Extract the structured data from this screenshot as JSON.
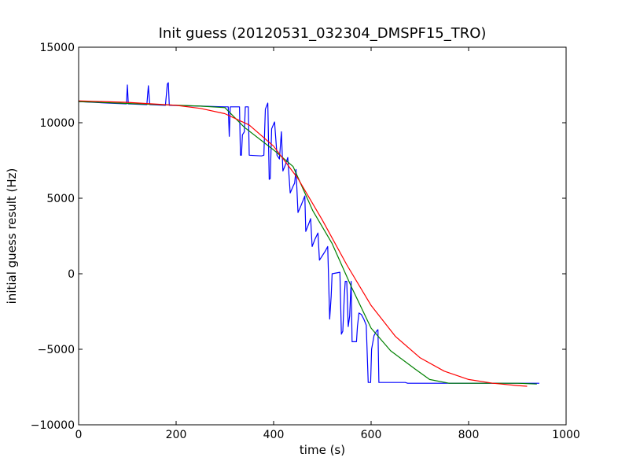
{
  "chart_data": {
    "type": "line",
    "title": "Init guess (20120531_032304_DMSPF15_TRO)",
    "xlabel": "time (s)",
    "ylabel": "initial guess result (Hz)",
    "xlim": [
      0,
      1000
    ],
    "ylim": [
      -10000,
      15000
    ],
    "xticks": [
      0,
      200,
      400,
      600,
      800,
      1000
    ],
    "yticks": [
      -10000,
      -5000,
      0,
      5000,
      10000,
      15000
    ],
    "grid": false,
    "colors": {
      "raw": "#0000ff",
      "piecewise": "#008000",
      "fit": "#ff0000"
    },
    "series": [
      {
        "key": "raw",
        "points": [
          [
            0,
            11400
          ],
          [
            60,
            11300
          ],
          [
            98,
            11250
          ],
          [
            100,
            12500
          ],
          [
            102,
            11250
          ],
          [
            140,
            11200
          ],
          [
            143,
            12450
          ],
          [
            146,
            11200
          ],
          [
            178,
            11150
          ],
          [
            182,
            12550
          ],
          [
            184,
            12650
          ],
          [
            186,
            11150
          ],
          [
            250,
            11100
          ],
          [
            300,
            11050
          ],
          [
            307,
            11050
          ],
          [
            309,
            9100
          ],
          [
            311,
            11050
          ],
          [
            330,
            11050
          ],
          [
            332,
            7850
          ],
          [
            334,
            7850
          ],
          [
            336,
            9200
          ],
          [
            340,
            9400
          ],
          [
            342,
            11050
          ],
          [
            348,
            11050
          ],
          [
            350,
            7850
          ],
          [
            375,
            7800
          ],
          [
            380,
            7850
          ],
          [
            383,
            10900
          ],
          [
            388,
            11300
          ],
          [
            391,
            6250
          ],
          [
            393,
            6300
          ],
          [
            396,
            9600
          ],
          [
            402,
            10050
          ],
          [
            407,
            7850
          ],
          [
            412,
            7600
          ],
          [
            416,
            9400
          ],
          [
            419,
            6800
          ],
          [
            424,
            7200
          ],
          [
            429,
            7700
          ],
          [
            434,
            5350
          ],
          [
            440,
            5800
          ],
          [
            443,
            6000
          ],
          [
            446,
            6900
          ],
          [
            450,
            4050
          ],
          [
            456,
            4500
          ],
          [
            461,
            4900
          ],
          [
            464,
            5150
          ],
          [
            466,
            2800
          ],
          [
            472,
            3300
          ],
          [
            476,
            3650
          ],
          [
            479,
            1800
          ],
          [
            485,
            2300
          ],
          [
            491,
            2700
          ],
          [
            494,
            900
          ],
          [
            500,
            1200
          ],
          [
            506,
            1500
          ],
          [
            511,
            1800
          ],
          [
            515,
            -3000
          ],
          [
            518,
            -1500
          ],
          [
            520,
            0
          ],
          [
            536,
            100
          ],
          [
            539,
            -4000
          ],
          [
            542,
            -3800
          ],
          [
            545,
            -1500
          ],
          [
            547,
            -500
          ],
          [
            550,
            -500
          ],
          [
            553,
            -3500
          ],
          [
            556,
            -2800
          ],
          [
            559,
            -500
          ],
          [
            561,
            -4500
          ],
          [
            570,
            -4500
          ],
          [
            572,
            -3500
          ],
          [
            575,
            -2600
          ],
          [
            580,
            -2700
          ],
          [
            585,
            -3000
          ],
          [
            590,
            -3400
          ],
          [
            594,
            -7200
          ],
          [
            599,
            -7200
          ],
          [
            601,
            -5000
          ],
          [
            606,
            -4100
          ],
          [
            611,
            -3800
          ],
          [
            614,
            -3700
          ],
          [
            616,
            -7200
          ],
          [
            660,
            -7200
          ],
          [
            670,
            -7200
          ],
          [
            675,
            -7250
          ],
          [
            720,
            -7250
          ],
          [
            760,
            -7250
          ],
          [
            800,
            -7250
          ],
          [
            850,
            -7250
          ],
          [
            900,
            -7250
          ],
          [
            945,
            -7250
          ]
        ]
      },
      {
        "key": "piecewise",
        "points": [
          [
            0,
            11400
          ],
          [
            120,
            11250
          ],
          [
            250,
            11100
          ],
          [
            300,
            11000
          ],
          [
            340,
            9700
          ],
          [
            400,
            8200
          ],
          [
            440,
            7100
          ],
          [
            480,
            4200
          ],
          [
            520,
            2000
          ],
          [
            560,
            -900
          ],
          [
            600,
            -3600
          ],
          [
            640,
            -5100
          ],
          [
            690,
            -6300
          ],
          [
            720,
            -7000
          ],
          [
            760,
            -7250
          ],
          [
            800,
            -7250
          ],
          [
            850,
            -7250
          ],
          [
            900,
            -7250
          ],
          [
            940,
            -7300
          ]
        ]
      },
      {
        "key": "fit",
        "points": [
          [
            0,
            11450
          ],
          [
            100,
            11350
          ],
          [
            200,
            11150
          ],
          [
            250,
            10950
          ],
          [
            300,
            10600
          ],
          [
            350,
            9850
          ],
          [
            400,
            8450
          ],
          [
            450,
            6300
          ],
          [
            500,
            3550
          ],
          [
            550,
            600
          ],
          [
            600,
            -2100
          ],
          [
            650,
            -4150
          ],
          [
            700,
            -5550
          ],
          [
            750,
            -6450
          ],
          [
            800,
            -7000
          ],
          [
            850,
            -7250
          ],
          [
            900,
            -7400
          ],
          [
            920,
            -7450
          ]
        ]
      }
    ]
  }
}
